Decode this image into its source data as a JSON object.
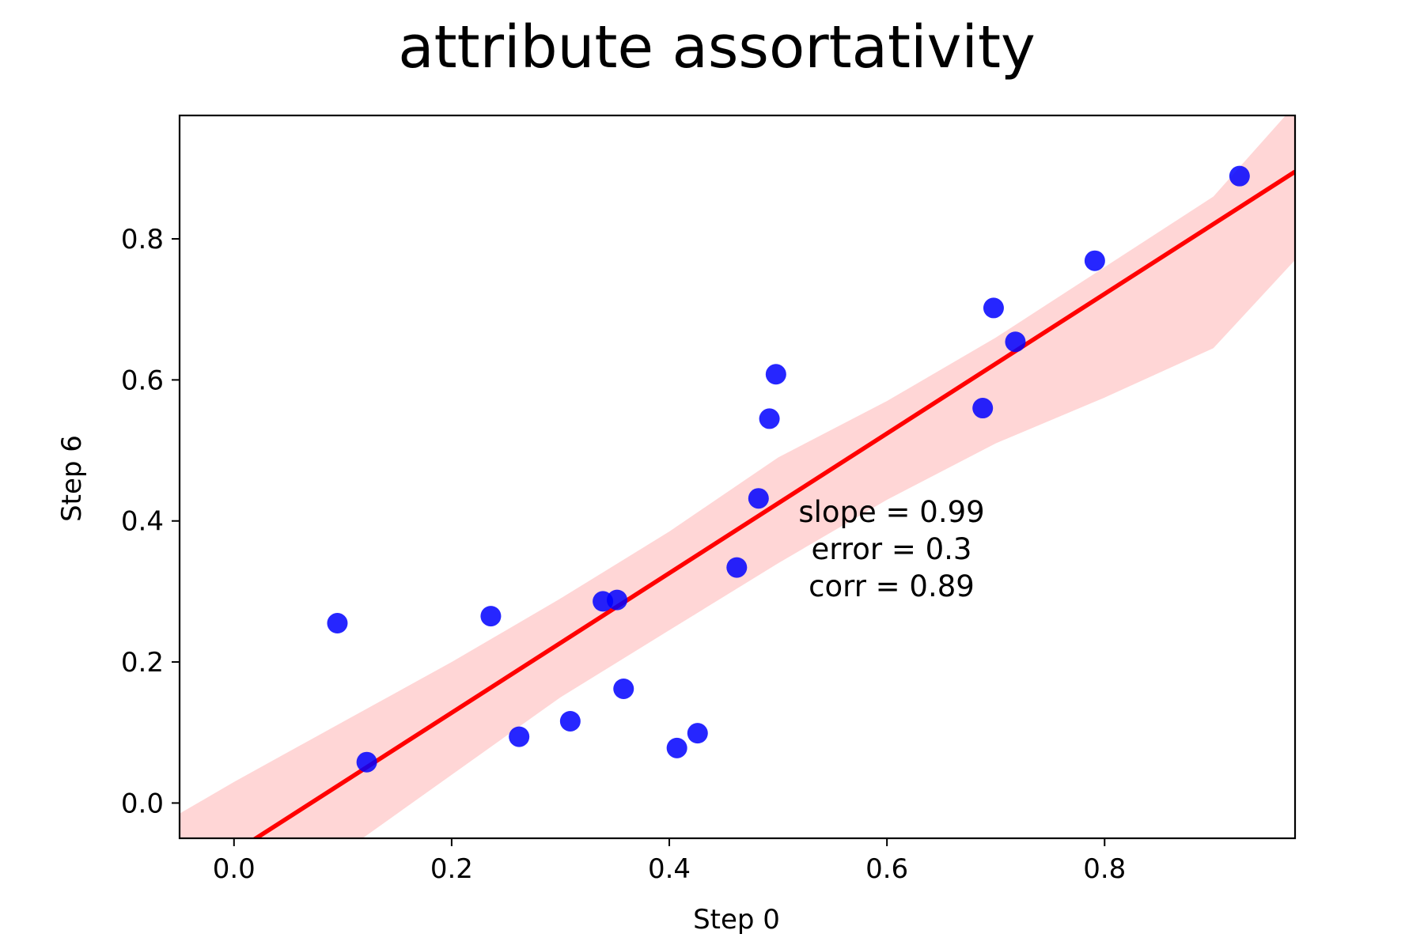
{
  "chart_data": {
    "type": "scatter",
    "title": "attribute assortativity",
    "xlabel": "Step 0",
    "ylabel": "Step 6",
    "xlim": [
      -0.05,
      0.975
    ],
    "ylim": [
      -0.05,
      0.975
    ],
    "xticks": [
      0.0,
      0.2,
      0.4,
      0.6,
      0.8
    ],
    "xtick_labels": [
      "0.0",
      "0.2",
      "0.4",
      "0.6",
      "0.8"
    ],
    "yticks": [
      0.0,
      0.2,
      0.4,
      0.6,
      0.8
    ],
    "ytick_labels": [
      "0.0",
      "0.2",
      "0.4",
      "0.6",
      "0.8"
    ],
    "grid": false,
    "legend": "none",
    "colors": {
      "points": "#0000ff",
      "fit_line": "#ff0000",
      "confidence_band": "#ffd6d6",
      "axes": "#000000"
    },
    "points": [
      {
        "x": 0.095,
        "y": 0.255
      },
      {
        "x": 0.122,
        "y": 0.058
      },
      {
        "x": 0.236,
        "y": 0.265
      },
      {
        "x": 0.262,
        "y": 0.094
      },
      {
        "x": 0.309,
        "y": 0.116
      },
      {
        "x": 0.339,
        "y": 0.286
      },
      {
        "x": 0.352,
        "y": 0.288
      },
      {
        "x": 0.358,
        "y": 0.162
      },
      {
        "x": 0.407,
        "y": 0.078
      },
      {
        "x": 0.426,
        "y": 0.099
      },
      {
        "x": 0.462,
        "y": 0.334
      },
      {
        "x": 0.482,
        "y": 0.432
      },
      {
        "x": 0.492,
        "y": 0.545
      },
      {
        "x": 0.498,
        "y": 0.608
      },
      {
        "x": 0.688,
        "y": 0.56
      },
      {
        "x": 0.698,
        "y": 0.702
      },
      {
        "x": 0.718,
        "y": 0.654
      },
      {
        "x": 0.791,
        "y": 0.769
      },
      {
        "x": 0.924,
        "y": 0.889
      }
    ],
    "fit": {
      "slope": 0.99,
      "intercept": -0.07,
      "band": {
        "x": [
          -0.05,
          0.0,
          0.1,
          0.2,
          0.3,
          0.4,
          0.5,
          0.6,
          0.7,
          0.8,
          0.9,
          0.975
        ],
        "lower": [
          -0.25,
          -0.185,
          -0.07,
          0.04,
          0.15,
          0.245,
          0.34,
          0.43,
          0.51,
          0.575,
          0.645,
          0.77
        ],
        "upper": [
          -0.015,
          0.03,
          0.115,
          0.2,
          0.29,
          0.385,
          0.49,
          0.57,
          0.66,
          0.76,
          0.86,
          0.99
        ]
      }
    },
    "annotations": [
      "slope = 0.99",
      "error = 0.3",
      "corr = 0.89"
    ]
  }
}
